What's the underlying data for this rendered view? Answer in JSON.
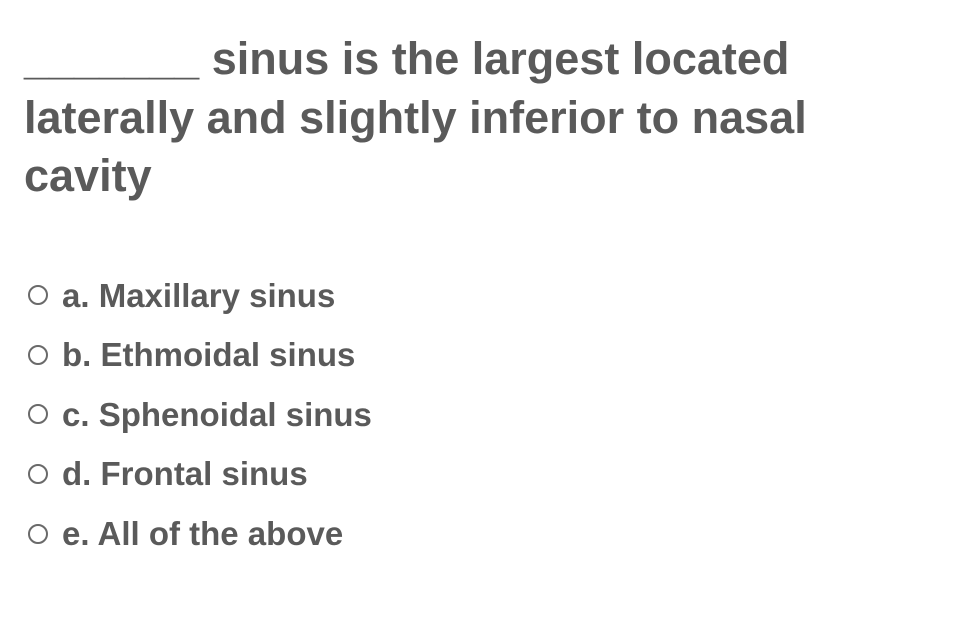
{
  "question": {
    "text": "_______ sinus is the largest located laterally and slightly inferior to nasal cavity",
    "text_color": "#5a5a5a",
    "fontsize": 45,
    "font_weight": "bold"
  },
  "options": [
    {
      "letter": "a.",
      "label": "Maxillary sinus"
    },
    {
      "letter": "b.",
      "label": "Ethmoidal sinus"
    },
    {
      "letter": "c.",
      "label": "Sphenoidal sinus"
    },
    {
      "letter": "d.",
      "label": "Frontal sinus"
    },
    {
      "letter": "e.",
      "label": "All of the above"
    }
  ],
  "option_style": {
    "text_color": "#5a5a5a",
    "fontsize": 33,
    "font_weight": "bold",
    "radio_border_color": "#6a6a6a",
    "radio_size": 20
  },
  "background_color": "#ffffff"
}
